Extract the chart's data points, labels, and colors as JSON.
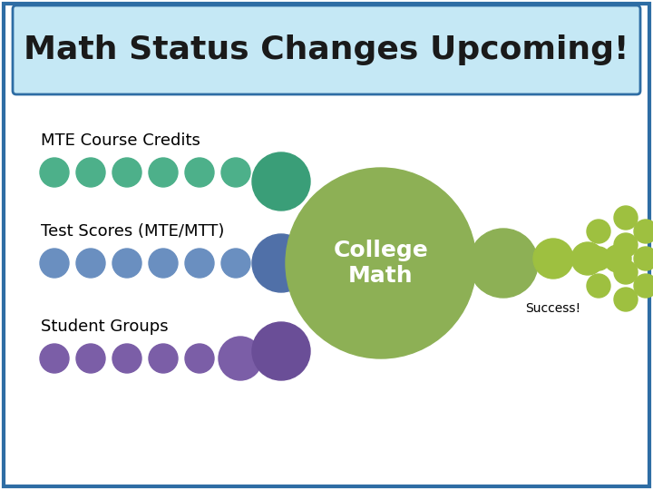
{
  "title": "Math Status Changes Upcoming!",
  "title_fontsize": 26,
  "background_color": "#ffffff",
  "border_color": "#2e6da4",
  "title_bg_color": "#c5e8f5",
  "labels": {
    "mte": "MTE Course Credits",
    "test": "Test Scores (MTE/MTT)",
    "student": "Student Groups",
    "college": "College\nMath",
    "success": "Success!"
  },
  "colors": {
    "green_dot": "#4db08a",
    "green_dot2": "#3a9e78",
    "blue_dot": "#6a8fc0",
    "blue_dot2": "#5070a8",
    "purple_dot": "#7b5ea7",
    "purple_dot2": "#6a4e97",
    "olive": "#8db055",
    "olive_light": "#9ec040"
  },
  "label_fontsize": 13,
  "success_fontsize": 10
}
